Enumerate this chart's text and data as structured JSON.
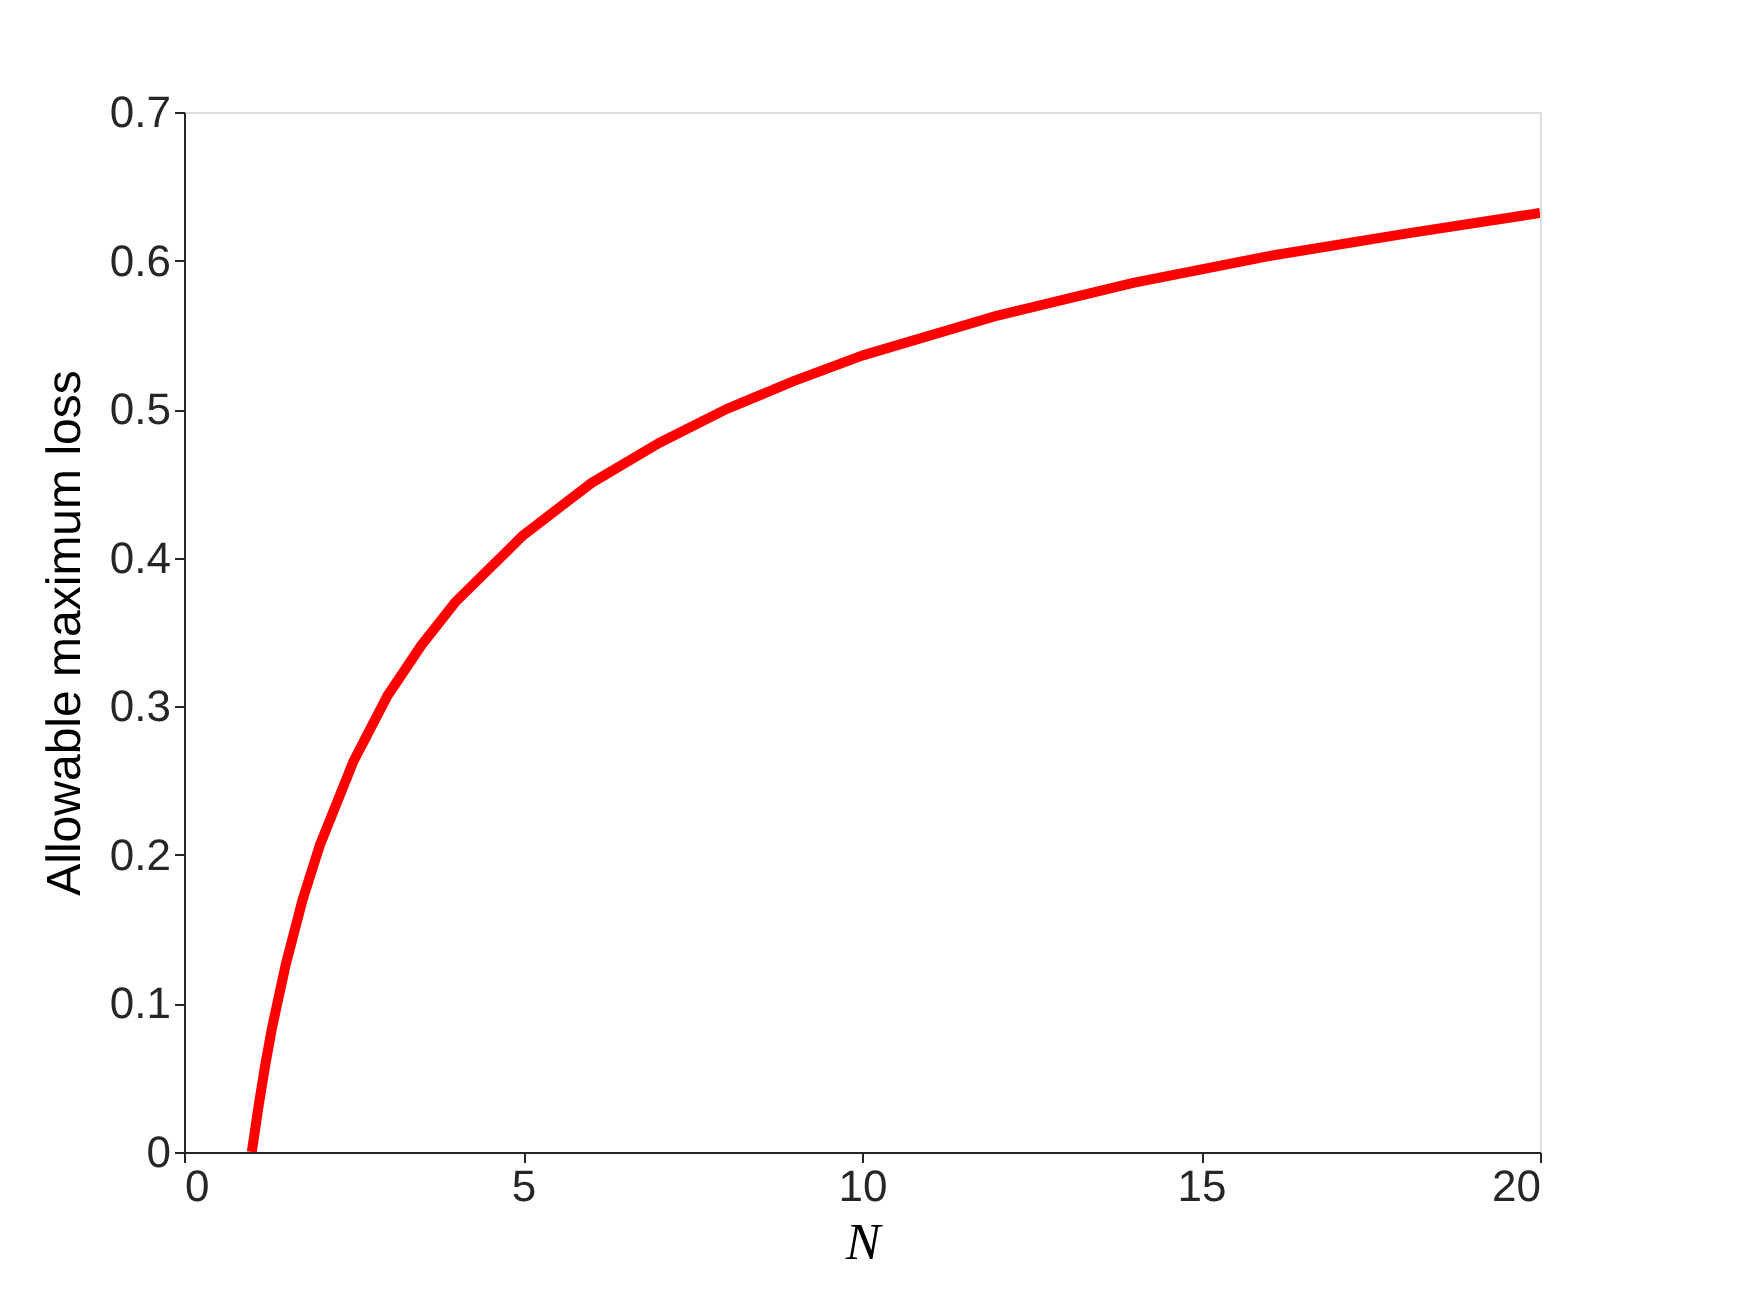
{
  "chart_data": {
    "type": "line",
    "xlabel": "N",
    "ylabel": "Allowable maximum loss",
    "x": [
      1,
      1.1,
      1.2,
      1.3,
      1.5,
      1.75,
      2,
      2.5,
      3,
      3.5,
      4,
      5,
      6,
      7,
      8,
      9,
      10,
      12,
      14,
      16,
      18,
      20
    ],
    "series": [
      {
        "color": "#ff0000",
        "values": [
          0,
          0.031,
          0.059,
          0.084,
          0.126,
          0.17,
          0.206,
          0.263,
          0.307,
          0.341,
          0.37,
          0.415,
          0.45,
          0.477,
          0.5,
          0.519,
          0.536,
          0.563,
          0.585,
          0.603,
          0.618,
          0.632
        ]
      }
    ],
    "xlim": [
      0,
      20
    ],
    "xticks": [
      0,
      5,
      10,
      15,
      20
    ],
    "ylim": [
      0,
      0.7
    ],
    "yticks": [
      0,
      0.1,
      0.2,
      0.3,
      0.4,
      0.5,
      0.6,
      0.7
    ],
    "grid": false,
    "marker": "none",
    "line_style": "solid"
  }
}
